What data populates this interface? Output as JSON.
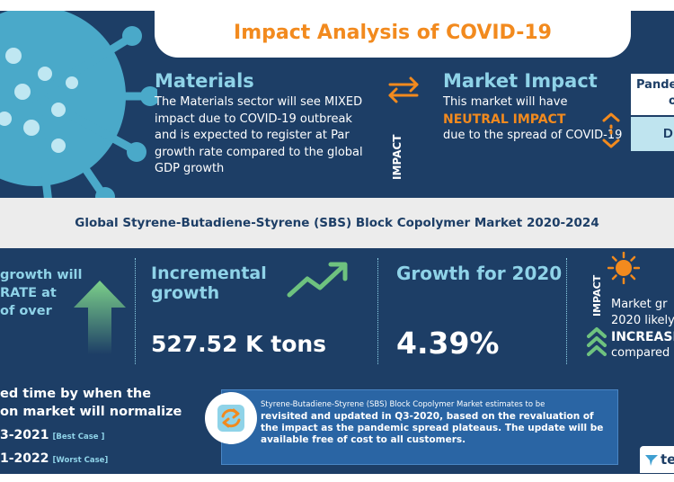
{
  "header": {
    "title": "Impact Analysis of COVID-19"
  },
  "materials": {
    "title": "Materials",
    "body": "The Materials sector will see MIXED impact due to COVID-19 outbreak and is expected to register at Par growth rate compared to the global GDP growth"
  },
  "impact_label": "IMPACT",
  "market_impact": {
    "title": "Market Impact",
    "line1": "This market will have",
    "highlight": "NEUTRAL IMPACT",
    "line2": "due to the spread of COVID-19"
  },
  "right_panel": {
    "line1": "Pande",
    "line2": "on",
    "badge": "D"
  },
  "band": {
    "title": "Global Styrene-Butadiene-Styrene (SBS) Block Copolymer Market 2020-2024"
  },
  "growth_partial": {
    "line1": "growth will",
    "line2": "RATE at",
    "line3": "of over"
  },
  "incremental": {
    "title_line1": "Incremental",
    "title_line2": "growth",
    "value": "527.52 K tons"
  },
  "growth2020": {
    "title": "Growth for 2020",
    "value": "4.39%"
  },
  "market_growth": {
    "impact_label": "IMPACT",
    "line1": "Market gr",
    "line2": "2020 likely",
    "highlight": "INCREASE",
    "line3": "compared"
  },
  "normalize": {
    "line1": "ed time by when the",
    "line2": "on market will normalize",
    "best_value": "3-2021",
    "best_tag": "[Best Case ]",
    "worst_value": "1-2022",
    "worst_tag": "[Worst Case]"
  },
  "note": {
    "small": "Styrene-Butadiene-Styrene (SBS) Block Copolymer Market estimates to be",
    "main": "revisited and updated in Q3-2020, based on the revaluation of the impact as the pandemic spread plateaus. The update will be available free of cost to all customers."
  },
  "logo": {
    "text": "te"
  },
  "colors": {
    "navy": "#1d3e66",
    "orange": "#f28a1e",
    "cyan": "#8fd3e8",
    "green": "#6ec27f"
  },
  "icons": [
    "virus-icon",
    "swap-arrows-icon",
    "up-down-arrows-icon",
    "up-arrow-icon",
    "trend-up-icon",
    "sun-icon",
    "chevron-up-icon",
    "refresh-icon",
    "logo-mark-icon"
  ]
}
